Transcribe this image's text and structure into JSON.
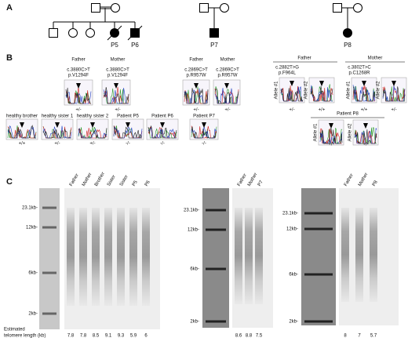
{
  "panel_a": {
    "label": "A",
    "probands": [
      "P5",
      "P6",
      "P7",
      "P8"
    ]
  },
  "panel_b": {
    "label": "B",
    "family1": {
      "parents": [
        {
          "name": "Father",
          "variant": "c.3880C>T",
          "protein": "p.V1294F",
          "genotype": "+/-"
        },
        {
          "name": "Mother",
          "variant": "c.3880C>T",
          "protein": "p.V1294F",
          "genotype": "+/-"
        }
      ],
      "siblings": [
        {
          "name": "healthy brother",
          "genotype": "+/+"
        },
        {
          "name": "healthy sister 1",
          "genotype": "+/-"
        },
        {
          "name": "healthy sister 2",
          "genotype": "+/-"
        },
        {
          "name": "Patient P5",
          "genotype": "-/-"
        },
        {
          "name": "Patient P6",
          "genotype": "-/-"
        }
      ]
    },
    "family2": {
      "parents": [
        {
          "name": "Father",
          "variant": "c.2869C>T",
          "protein": "p.R957W",
          "genotype": "+/-"
        },
        {
          "name": "Mother",
          "variant": "c.2869C>T",
          "protein": "p.R957W",
          "genotype": "+/-"
        }
      ],
      "siblings": [
        {
          "name": "Patient P7",
          "genotype": "-/-"
        }
      ]
    },
    "family3": {
      "parents": [
        {
          "name": "Father",
          "variant": "c.2882T>G",
          "protein": "p.F964L",
          "alleles": [
            {
              "name": "Allele #1",
              "genotype": "+/-"
            },
            {
              "name": "Allele #2",
              "genotype": "+/+"
            }
          ]
        },
        {
          "name": "Mother",
          "variant": "c.3802T>C",
          "protein": "p.C1268R",
          "alleles": [
            {
              "name": "Allele #1",
              "genotype": "+/+"
            },
            {
              "name": "Allele #2",
              "genotype": "+/-"
            }
          ]
        }
      ],
      "patient": {
        "name": "Patient P8",
        "alleles": [
          {
            "name": "Allele #1",
            "genotype": "+/-"
          },
          {
            "name": "Allele #2",
            "genotype": "+/-"
          }
        ]
      }
    }
  },
  "panel_c": {
    "label": "C",
    "length_label": [
      "Estimated",
      "telomere length (kb)"
    ],
    "gels": [
      {
        "lanes": [
          "Father",
          "Mother",
          "Brother",
          "Sister",
          "Sister",
          "P5",
          "P6"
        ],
        "markers": [
          "23.1kb-",
          "12kb-",
          "6kb-",
          "2kb-"
        ],
        "lengths": [
          "7.8",
          "7.8",
          "8.5",
          "9.1",
          "9.3",
          "5.9",
          "6"
        ]
      },
      {
        "lanes": [
          "Father",
          "Mother",
          "P7"
        ],
        "markers": [
          "23.1kb-",
          "12kb-",
          "6kb-",
          "2kb-"
        ],
        "lengths": [
          "8.6",
          "8.8",
          "7.5"
        ]
      },
      {
        "lanes": [
          "Father",
          "Mother",
          "P8"
        ],
        "markers": [
          "23.1kb-",
          "12kb-",
          "6kb-",
          "2kb-"
        ],
        "lengths": [
          "8",
          "7",
          "5.7"
        ]
      }
    ]
  }
}
